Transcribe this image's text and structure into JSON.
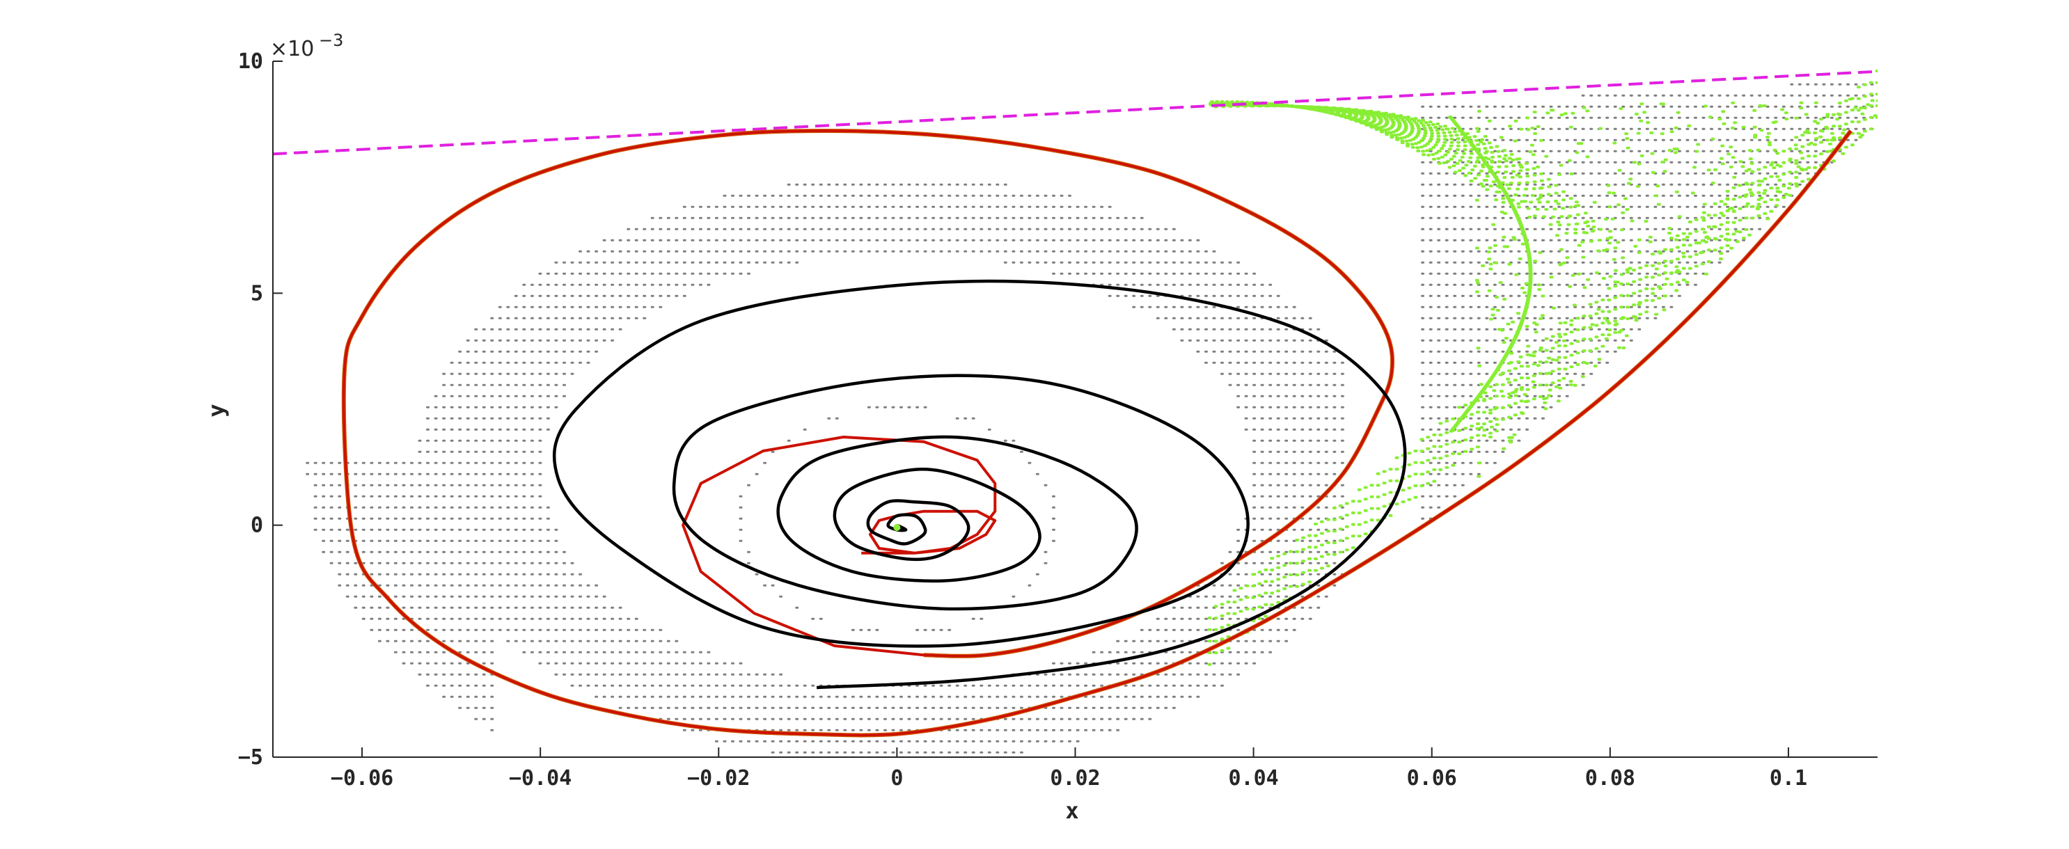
{
  "chart_data": {
    "type": "line",
    "title": "",
    "xlabel": "x",
    "ylabel": "y",
    "xlim": [
      -0.07,
      0.11
    ],
    "ylim": [
      -0.005,
      0.01
    ],
    "y_multiplier_label": "×10",
    "y_multiplier_exponent": "−3",
    "x_ticks": [
      {
        "value": -0.06,
        "label": "−0.06"
      },
      {
        "value": -0.04,
        "label": "−0.04"
      },
      {
        "value": -0.02,
        "label": "−0.02"
      },
      {
        "value": 0,
        "label": "0"
      },
      {
        "value": 0.02,
        "label": "0.02"
      },
      {
        "value": 0.04,
        "label": "0.04"
      },
      {
        "value": 0.06,
        "label": "0.06"
      },
      {
        "value": 0.08,
        "label": "0.08"
      },
      {
        "value": 0.1,
        "label": "0.1"
      }
    ],
    "y_ticks": [
      {
        "value": -0.005,
        "label": "−5"
      },
      {
        "value": 0,
        "label": "0"
      },
      {
        "value": 0.005,
        "label": "5"
      },
      {
        "value": 0.01,
        "label": "10"
      }
    ],
    "grid": false,
    "legend": "none",
    "colors": {
      "magenta": "#e020e0",
      "green": "#88ee33",
      "gray": "#555555",
      "red": "#cc1100",
      "orange": "#cc5500",
      "black": "#000000",
      "axis": "#262626"
    },
    "series": [
      {
        "kind": "dashed-line",
        "color": "magenta",
        "x": [
          -0.07,
          0.11
        ],
        "y": [
          0.008,
          0.00978
        ]
      },
      {
        "kind": "red-outer-trajectory",
        "color": "red",
        "x": [
          0.107,
          0.1,
          0.09,
          0.08,
          0.07,
          0.06,
          0.05,
          0.04,
          0.03,
          0.02,
          0.01,
          0.0,
          -0.01,
          -0.02,
          -0.03,
          -0.04,
          -0.05,
          -0.057,
          -0.061,
          -0.062,
          -0.06,
          -0.054,
          -0.045,
          -0.033,
          -0.02,
          -0.008,
          0.005,
          0.017,
          0.029,
          0.039,
          0.047,
          0.052,
          0.055,
          0.0555,
          0.054,
          0.05,
          0.044,
          0.036,
          0.027,
          0.018,
          0.01,
          0.003
        ],
        "y": [
          0.0085,
          0.0068,
          0.0047,
          0.0029,
          0.0014,
          0.0001,
          -0.0011,
          -0.0022,
          -0.0031,
          -0.0037,
          -0.0042,
          -0.0045,
          -0.0045,
          -0.0044,
          -0.0041,
          -0.0036,
          -0.0027,
          -0.0016,
          -0.0003,
          0.0032,
          0.0045,
          0.006,
          0.0072,
          0.008,
          0.0084,
          0.0085,
          0.0084,
          0.0081,
          0.0076,
          0.0068,
          0.0059,
          0.005,
          0.0041,
          0.0033,
          0.0025,
          0.0011,
          0.0,
          -0.001,
          -0.0019,
          -0.0025,
          -0.0028,
          -0.0028
        ]
      },
      {
        "kind": "red-inner-polygon",
        "color": "red",
        "x": [
          0.003,
          -0.007,
          -0.016,
          -0.022,
          -0.024,
          -0.022,
          -0.015,
          -0.006,
          0.003,
          0.009,
          0.011,
          0.011,
          0.009,
          0.006,
          0.002,
          -0.002,
          -0.003,
          -0.002,
          0.0,
          0.003,
          0.006,
          0.009,
          0.011,
          0.01,
          0.007,
          0.002,
          -0.004
        ],
        "y": [
          -0.0028,
          -0.0026,
          -0.0019,
          -0.001,
          0.0,
          0.0009,
          0.0016,
          0.0019,
          0.0018,
          0.0014,
          0.0009,
          0.0003,
          -0.0002,
          -0.0005,
          -0.0006,
          -0.0005,
          -0.0002,
          0.0001,
          0.0002,
          0.0003,
          0.0003,
          0.0003,
          0.0001,
          -0.0002,
          -0.0005,
          -0.0006,
          -0.0006
        ]
      },
      {
        "kind": "black-spiral",
        "color": "black",
        "x": [
          -0.009,
          0.01,
          0.03,
          0.045,
          0.054,
          0.057,
          0.054,
          0.044,
          0.025,
          0.002,
          -0.022,
          -0.036,
          -0.038,
          -0.031,
          -0.015,
          0.005,
          0.025,
          0.037,
          0.039,
          0.032,
          0.016,
          -0.003,
          -0.021,
          -0.025,
          -0.022,
          -0.011,
          0.005,
          0.02,
          0.026,
          0.026,
          0.018,
          0.006,
          -0.008,
          -0.013,
          -0.012,
          -0.005,
          0.005,
          0.013,
          0.016,
          0.014,
          0.008,
          0.002,
          -0.005,
          -0.007,
          -0.005,
          0.0,
          0.004,
          0.007,
          0.008,
          0.006,
          0.002,
          -0.001,
          -0.003,
          -0.003,
          -0.001,
          0.001,
          0.003,
          0.003,
          0.002,
          0.0,
          -0.001,
          0.0,
          0.001,
          0.0
        ],
        "y": [
          -0.0035,
          -0.0033,
          -0.0027,
          -0.0015,
          0.0,
          0.0015,
          0.003,
          0.0043,
          0.0051,
          0.0052,
          0.0044,
          0.0025,
          0.001,
          -0.0005,
          -0.0022,
          -0.0026,
          -0.002,
          -0.001,
          0.0005,
          0.002,
          0.0031,
          0.0031,
          0.0022,
          0.0009,
          -0.0003,
          -0.0013,
          -0.0018,
          -0.0015,
          -0.0006,
          0.0004,
          0.0014,
          0.0019,
          0.0015,
          0.0006,
          -0.0003,
          -0.001,
          -0.0012,
          -0.0009,
          -0.0003,
          0.0004,
          0.001,
          0.0012,
          0.0008,
          0.0002,
          -0.0004,
          -0.0007,
          -0.0007,
          -0.0004,
          0.0,
          0.0004,
          0.0005,
          0.0005,
          0.0002,
          -0.0001,
          -0.0003,
          -0.0004,
          -0.0002,
          0.0,
          0.0002,
          0.0002,
          0.0,
          -0.0001,
          -0.0001,
          0.0
        ]
      },
      {
        "kind": "green-scatter",
        "color": "green",
        "description_points": "tongue",
        "x": [
          0.0,
          0.07
        ],
        "y": [
          0.0,
          0.0
        ]
      }
    ]
  }
}
